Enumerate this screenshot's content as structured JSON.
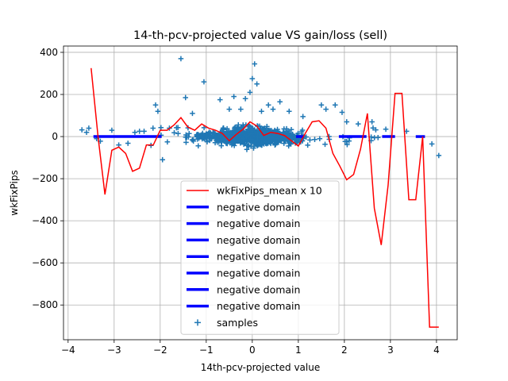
{
  "chart_data": {
    "type": "scatter",
    "title": "14-th-pcv-projected value VS gain/loss (sell)",
    "xlabel": "14th-pcv-projected value",
    "ylabel": "wkFixPips",
    "xlim": [
      -4.1,
      4.45
    ],
    "ylim": [
      -965,
      430
    ],
    "xticks": [
      -4,
      -3,
      -2,
      -1,
      0,
      1,
      2,
      3,
      4
    ],
    "xtick_labels": [
      "−4",
      "−3",
      "−2",
      "−1",
      "0",
      "1",
      "2",
      "3",
      "4"
    ],
    "yticks": [
      -800,
      -600,
      -400,
      -200,
      0,
      200,
      400
    ],
    "ytick_labels": [
      "−800",
      "−600",
      "−400",
      "−200",
      "0",
      "200",
      "400"
    ],
    "grid": true,
    "legend_position": "lower-center",
    "legend": [
      "wkFixPips_mean x 10",
      "negative domain",
      "negative domain",
      "negative domain",
      "negative domain",
      "negative domain",
      "negative domain",
      "negative domain",
      "samples"
    ],
    "colors": {
      "mean_line": "#ff0000",
      "negative_domain": "#0000ff",
      "samples": "#1f77b4"
    },
    "series": [
      {
        "name": "wkFixPips_mean x 10",
        "type": "line",
        "x": [
          -3.5,
          -3.35,
          -3.2,
          -3.05,
          -2.9,
          -2.75,
          -2.6,
          -2.45,
          -2.3,
          -2.15,
          -2.0,
          -1.85,
          -1.7,
          -1.55,
          -1.4,
          -1.25,
          -1.1,
          -0.95,
          -0.8,
          -0.65,
          -0.5,
          -0.35,
          -0.2,
          -0.05,
          0.1,
          0.25,
          0.4,
          0.55,
          0.7,
          0.85,
          1.0,
          1.15,
          1.3,
          1.45,
          1.6,
          1.75,
          1.9,
          2.05,
          2.2,
          2.35,
          2.5,
          2.65,
          2.8,
          2.95,
          3.1,
          3.25,
          3.4,
          3.55,
          3.7,
          3.85,
          4.0
        ],
        "y": [
          325,
          0,
          -275,
          -65,
          -50,
          -80,
          -165,
          -150,
          -40,
          -40,
          30,
          30,
          55,
          90,
          45,
          30,
          60,
          40,
          30,
          15,
          -20,
          10,
          35,
          70,
          50,
          5,
          20,
          15,
          5,
          -20,
          -45,
          15,
          70,
          75,
          40,
          -80,
          -140,
          -205,
          -180,
          -60,
          110,
          -340,
          -515,
          -230,
          205,
          205,
          -300,
          -300,
          0,
          -905,
          null
        ],
        "note_x_max": 4.05
      },
      {
        "name": "negative domain",
        "type": "segments",
        "segments": [
          [
            -3.45,
            -1.97
          ],
          [
            0.95,
            1.12
          ],
          [
            1.88,
            2.48
          ],
          [
            2.82,
            3.1
          ],
          [
            3.55,
            3.75
          ]
        ],
        "y": 0
      },
      {
        "name": "samples",
        "type": "scatter",
        "points": [
          [
            -3.7,
            32
          ],
          [
            -3.55,
            40
          ],
          [
            -3.6,
            20
          ],
          [
            -3.38,
            -10
          ],
          [
            -3.3,
            -22
          ],
          [
            -3.05,
            30
          ],
          [
            -2.9,
            -40
          ],
          [
            -2.7,
            -32
          ],
          [
            -2.55,
            20
          ],
          [
            -2.45,
            25
          ],
          [
            -2.35,
            25
          ],
          [
            -2.2,
            -42
          ],
          [
            -2.1,
            150
          ],
          [
            -2.05,
            120
          ],
          [
            -1.95,
            -110
          ],
          [
            -1.8,
            40
          ],
          [
            -1.55,
            370
          ],
          [
            -1.45,
            185
          ],
          [
            -1.3,
            110
          ],
          [
            -1.05,
            260
          ],
          [
            -0.7,
            175
          ],
          [
            -0.5,
            130
          ],
          [
            -0.4,
            190
          ],
          [
            -0.25,
            130
          ],
          [
            -0.15,
            180
          ],
          [
            -0.05,
            210
          ],
          [
            0.0,
            275
          ],
          [
            0.05,
            345
          ],
          [
            0.1,
            250
          ],
          [
            0.2,
            120
          ],
          [
            0.35,
            150
          ],
          [
            0.45,
            130
          ],
          [
            0.6,
            165
          ],
          [
            0.8,
            120
          ],
          [
            1.1,
            95
          ],
          [
            1.5,
            150
          ],
          [
            1.6,
            130
          ],
          [
            1.8,
            150
          ],
          [
            1.95,
            115
          ],
          [
            2.05,
            70
          ],
          [
            2.3,
            60
          ],
          [
            2.6,
            70
          ],
          [
            2.9,
            35
          ],
          [
            3.35,
            25
          ],
          [
            3.9,
            -35
          ],
          [
            4.05,
            -90
          ]
        ]
      }
    ]
  }
}
